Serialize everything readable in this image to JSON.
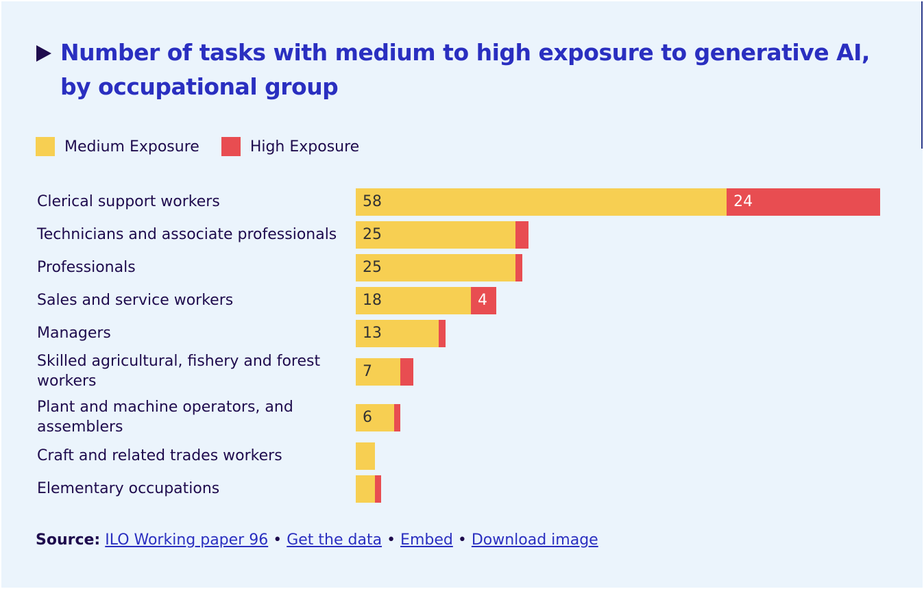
{
  "title": "Number of tasks with medium to high exposure to generative AI, by occupational group",
  "colors": {
    "medium": "#f7cf52",
    "high": "#e84d51",
    "title": "#2a2fc0",
    "text": "#1e0b4d",
    "background": "#ebf4fc"
  },
  "chart_data": {
    "type": "bar",
    "orientation": "horizontal",
    "stacked": true,
    "title": "Number of tasks with medium to high exposure to generative AI, by occupational group",
    "legend_position": "top-left",
    "grid": false,
    "categories": [
      "Clerical support workers",
      "Technicians and associate professionals",
      "Professionals",
      "Sales and service workers",
      "Managers",
      "Skilled agricultural, fishery and forest workers",
      "Plant and machine operators, and assemblers",
      "Craft and related trades workers",
      "Elementary occupations"
    ],
    "series": [
      {
        "name": "Medium Exposure",
        "values": [
          58,
          25,
          25,
          18,
          13,
          7,
          6,
          3,
          3
        ],
        "labels": [
          "58",
          "25",
          "25",
          "18",
          "13",
          "7",
          "6",
          "",
          ""
        ]
      },
      {
        "name": "High Exposure",
        "values": [
          24,
          2,
          1,
          4,
          1,
          2,
          1,
          0,
          1
        ],
        "labels": [
          "24",
          "",
          "",
          "4",
          "",
          "",
          "",
          "",
          ""
        ]
      }
    ]
  },
  "source": {
    "label": "Source:",
    "links": [
      "ILO Working paper 96",
      "Get the data",
      "Embed",
      "Download image"
    ],
    "separator": "•"
  }
}
